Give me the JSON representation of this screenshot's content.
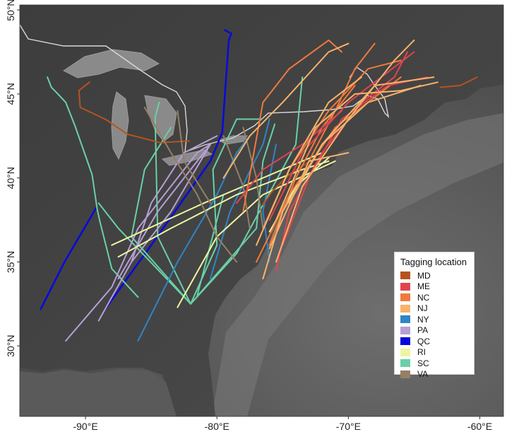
{
  "map": {
    "axes": {
      "x_ticks": [
        {
          "lon": -90,
          "label": "-90°E"
        },
        {
          "lon": -80,
          "label": "-80°E"
        },
        {
          "lon": -70,
          "label": "-70°E"
        },
        {
          "lon": -60,
          "label": "-60°E"
        }
      ],
      "y_ticks": [
        {
          "lat": 50,
          "label": "50°N"
        },
        {
          "lat": 45,
          "label": "45°N"
        },
        {
          "lat": 40,
          "label": "40°N"
        },
        {
          "lat": 35,
          "label": "35°N"
        },
        {
          "lat": 30,
          "label": "30°N"
        }
      ],
      "xlim": [
        -95.0,
        -58.2
      ],
      "ylim": [
        25.8,
        50.3
      ]
    },
    "legend": {
      "title": "Tagging location",
      "placement": "bottom-right",
      "items": [
        {
          "code": "MD",
          "label": "MD",
          "color": "#b5541e"
        },
        {
          "code": "ME",
          "label": "ME",
          "color": "#e0454e"
        },
        {
          "code": "NC",
          "label": "NC",
          "color": "#f07a3c"
        },
        {
          "code": "NJ",
          "label": "NJ",
          "color": "#f7b36b"
        },
        {
          "code": "NY",
          "label": "NY",
          "color": "#2f86c4"
        },
        {
          "code": "PA",
          "label": "PA",
          "color": "#b79fd6"
        },
        {
          "code": "QC",
          "label": "QC",
          "color": "#0a0ad8"
        },
        {
          "code": "RI",
          "label": "RI",
          "color": "#eef5a0"
        },
        {
          "code": "SC",
          "label": "SC",
          "color": "#69d1a6"
        },
        {
          "code": "VA",
          "label": "VA",
          "color": "#958064"
        }
      ]
    },
    "tracks": [
      {
        "group": "QC",
        "points": [
          [
            -93.4,
            32.2
          ],
          [
            -91.6,
            35.0
          ],
          [
            -89.2,
            38.2
          ]
        ]
      },
      {
        "group": "QC",
        "points": [
          [
            -88.5,
            32.2
          ],
          [
            -85.0,
            36.0
          ],
          [
            -80.5,
            41.0
          ],
          [
            -79.6,
            42.7
          ],
          [
            -79.1,
            48.2
          ],
          [
            -78.9,
            48.6
          ],
          [
            -79.4,
            48.8
          ]
        ]
      },
      {
        "group": "SC",
        "points": [
          [
            -92.9,
            46.0
          ],
          [
            -92.6,
            45.4
          ],
          [
            -92.1,
            45.0
          ],
          [
            -91.5,
            44.5
          ],
          [
            -90.8,
            43.1
          ],
          [
            -89.5,
            40.2
          ],
          [
            -89.1,
            38.1
          ],
          [
            -88.9,
            37.4
          ],
          [
            -88.0,
            34.6
          ],
          [
            -86.0,
            32.9
          ]
        ]
      },
      {
        "group": "SC",
        "points": [
          [
            -82.0,
            32.5
          ],
          [
            -87.5,
            37.0
          ],
          [
            -89.0,
            38.5
          ]
        ]
      },
      {
        "group": "SC",
        "points": [
          [
            -82.0,
            32.5
          ],
          [
            -84.5,
            36.5
          ],
          [
            -84.7,
            43.6
          ],
          [
            -84.4,
            44.5
          ]
        ]
      },
      {
        "group": "SC",
        "points": [
          [
            -82.0,
            32.5
          ],
          [
            -80.0,
            36.0
          ],
          [
            -80.3,
            40.5
          ],
          [
            -78.5,
            43.5
          ],
          [
            -76.6,
            43.5
          ]
        ]
      },
      {
        "group": "SC",
        "points": [
          [
            -82.0,
            32.5
          ],
          [
            -77.0,
            37.0
          ],
          [
            -76.5,
            41.0
          ],
          [
            -75.6,
            43.2
          ]
        ]
      },
      {
        "group": "SC",
        "points": [
          [
            -82.0,
            32.5
          ],
          [
            -78.5,
            35.5
          ],
          [
            -74.0,
            42.0
          ],
          [
            -73.5,
            46.0
          ]
        ]
      },
      {
        "group": "SC",
        "points": [
          [
            -82.0,
            32.5
          ],
          [
            -86.5,
            36.5
          ],
          [
            -85.5,
            40.5
          ],
          [
            -83.5,
            43.0
          ]
        ]
      },
      {
        "group": "SC",
        "points": [
          [
            -81.5,
            33.0
          ],
          [
            -80.5,
            36.0
          ],
          [
            -79.5,
            39.0
          ]
        ]
      },
      {
        "group": "PA",
        "points": [
          [
            -91.5,
            30.3
          ],
          [
            -88.0,
            33.5
          ],
          [
            -86.0,
            37.0
          ],
          [
            -81.5,
            41.5
          ],
          [
            -80.5,
            42.0
          ]
        ]
      },
      {
        "group": "PA",
        "points": [
          [
            -89.0,
            31.5
          ],
          [
            -86.5,
            35.0
          ],
          [
            -83.5,
            38.0
          ],
          [
            -80.5,
            42.0
          ]
        ]
      },
      {
        "group": "PA",
        "points": [
          [
            -86.5,
            35.0
          ],
          [
            -85.0,
            38.5
          ],
          [
            -82.5,
            41.5
          ],
          [
            -80.0,
            42.5
          ]
        ]
      },
      {
        "group": "PA",
        "points": [
          [
            -87.5,
            34.0
          ],
          [
            -84.5,
            38.0
          ],
          [
            -80.5,
            42.0
          ]
        ]
      },
      {
        "group": "NY",
        "points": [
          [
            -86.0,
            30.3
          ],
          [
            -83.0,
            35.0
          ],
          [
            -80.0,
            39.0
          ],
          [
            -78.5,
            41.5
          ],
          [
            -77.5,
            42.5
          ]
        ]
      },
      {
        "group": "NY",
        "points": [
          [
            -80.5,
            34.0
          ],
          [
            -79.0,
            38.0
          ],
          [
            -76.5,
            42.0
          ],
          [
            -76.0,
            43.5
          ]
        ]
      },
      {
        "group": "NY",
        "points": [
          [
            -76.0,
            35.0
          ],
          [
            -76.5,
            38.0
          ],
          [
            -75.5,
            42.0
          ]
        ]
      },
      {
        "group": "RI",
        "points": [
          [
            -88.0,
            36.0
          ],
          [
            -81.0,
            38.5
          ],
          [
            -72.0,
            41.5
          ]
        ]
      },
      {
        "group": "RI",
        "points": [
          [
            -87.5,
            35.3
          ],
          [
            -83.5,
            37.0
          ],
          [
            -78.5,
            39.0
          ],
          [
            -73.5,
            40.5
          ],
          [
            -71.5,
            41.0
          ]
        ]
      },
      {
        "group": "RI",
        "points": [
          [
            -83.0,
            32.3
          ],
          [
            -80.0,
            36.5
          ],
          [
            -76.5,
            39.0
          ],
          [
            -71.0,
            41.0
          ]
        ]
      },
      {
        "group": "RI",
        "points": [
          [
            -76.0,
            36.8
          ],
          [
            -74.0,
            39.5
          ],
          [
            -71.5,
            41.2
          ]
        ]
      },
      {
        "group": "MD",
        "points": [
          [
            -90.5,
            45.2
          ],
          [
            -90.4,
            44.2
          ],
          [
            -88.5,
            43.5
          ],
          [
            -86.8,
            42.6
          ],
          [
            -84.3,
            42.1
          ],
          [
            -82.1,
            42.2
          ]
        ]
      },
      {
        "group": "MD",
        "points": [
          [
            -89.7,
            45.7
          ],
          [
            -90.5,
            45.2
          ]
        ]
      },
      {
        "group": "MD",
        "points": [
          [
            -63.0,
            45.4
          ],
          [
            -61.5,
            45.5
          ],
          [
            -60.2,
            46.0
          ]
        ]
      },
      {
        "group": "MD",
        "points": [
          [
            -76.5,
            38.4
          ],
          [
            -75.8,
            39.2
          ],
          [
            -74.5,
            40.2
          ],
          [
            -72.5,
            41.2
          ]
        ]
      },
      {
        "group": "VA",
        "points": [
          [
            -85.5,
            44.2
          ],
          [
            -83.5,
            41.5
          ],
          [
            -81.5,
            39.0
          ],
          [
            -80.0,
            36.5
          ],
          [
            -78.5,
            35.0
          ]
        ]
      },
      {
        "group": "VA",
        "points": [
          [
            -83.0,
            44.0
          ],
          [
            -82.5,
            41.0
          ],
          [
            -80.5,
            38.5
          ]
        ]
      },
      {
        "group": "VA",
        "points": [
          [
            -78.0,
            43.0
          ],
          [
            -77.0,
            40.0
          ],
          [
            -76.5,
            37.0
          ]
        ]
      },
      {
        "group": "VA",
        "points": [
          [
            -79.5,
            42.5
          ],
          [
            -78.0,
            39.5
          ],
          [
            -77.5,
            37.0
          ]
        ]
      },
      {
        "group": "NC",
        "points": [
          [
            -73.0,
            41.0
          ],
          [
            -71.0,
            44.0
          ],
          [
            -69.5,
            46.5
          ],
          [
            -68.0,
            48.0
          ]
        ]
      },
      {
        "group": "NC",
        "points": [
          [
            -76.5,
            37.0
          ],
          [
            -74.5,
            40.5
          ],
          [
            -71.5,
            44.0
          ],
          [
            -68.5,
            46.5
          ],
          [
            -66.0,
            47.0
          ]
        ]
      },
      {
        "group": "NC",
        "points": [
          [
            -77.0,
            35.0
          ],
          [
            -74.5,
            39.0
          ],
          [
            -71.0,
            43.0
          ],
          [
            -66.0,
            46.0
          ]
        ]
      },
      {
        "group": "NC",
        "points": [
          [
            -78.0,
            38.0
          ],
          [
            -76.5,
            44.5
          ],
          [
            -74.5,
            46.5
          ],
          [
            -71.5,
            48.2
          ],
          [
            -70.5,
            47.5
          ]
        ]
      },
      {
        "group": "NC",
        "points": [
          [
            -76.0,
            36.0
          ],
          [
            -74.0,
            40.0
          ],
          [
            -72.0,
            43.0
          ],
          [
            -69.5,
            45.5
          ]
        ]
      },
      {
        "group": "ME",
        "points": [
          [
            -75.5,
            34.5
          ],
          [
            -74.5,
            38.0
          ],
          [
            -72.0,
            41.5
          ],
          [
            -69.0,
            44.5
          ],
          [
            -66.5,
            46.0
          ],
          [
            -65.5,
            47.5
          ]
        ]
      },
      {
        "group": "ME",
        "points": [
          [
            -75.0,
            36.0
          ],
          [
            -73.0,
            40.0
          ],
          [
            -70.5,
            43.5
          ],
          [
            -67.0,
            45.5
          ],
          [
            -64.0,
            46.0
          ]
        ]
      },
      {
        "group": "ME",
        "points": [
          [
            -76.0,
            37.5
          ],
          [
            -73.5,
            41.5
          ],
          [
            -70.0,
            44.5
          ],
          [
            -65.0,
            47.5
          ]
        ]
      },
      {
        "group": "ME",
        "points": [
          [
            -78.5,
            38.5
          ],
          [
            -76.5,
            40.5
          ],
          [
            -73.5,
            42.0
          ],
          [
            -70.5,
            44.0
          ]
        ]
      },
      {
        "group": "NJ",
        "points": [
          [
            -76.5,
            34.0
          ],
          [
            -75.0,
            38.0
          ],
          [
            -72.0,
            42.0
          ],
          [
            -68.0,
            45.5
          ],
          [
            -63.5,
            46.0
          ]
        ]
      },
      {
        "group": "NJ",
        "points": [
          [
            -75.5,
            35.0
          ],
          [
            -73.5,
            39.5
          ],
          [
            -70.0,
            43.5
          ],
          [
            -66.5,
            47.0
          ],
          [
            -65.0,
            48.2
          ]
        ]
      },
      {
        "group": "NJ",
        "points": [
          [
            -77.0,
            36.0
          ],
          [
            -74.5,
            40.5
          ],
          [
            -71.5,
            44.5
          ],
          [
            -69.0,
            46.0
          ]
        ]
      },
      {
        "group": "NJ",
        "points": [
          [
            -74.5,
            38.5
          ],
          [
            -72.0,
            42.0
          ],
          [
            -68.5,
            44.5
          ],
          [
            -64.5,
            45.5
          ]
        ]
      },
      {
        "group": "NJ",
        "points": [
          [
            -79.5,
            40.0
          ],
          [
            -77.5,
            42.5
          ],
          [
            -75.0,
            44.5
          ],
          [
            -71.5,
            47.5
          ],
          [
            -70.0,
            48.0
          ]
        ]
      },
      {
        "group": "NJ",
        "points": [
          [
            -76.0,
            35.8
          ],
          [
            -73.0,
            41.0
          ],
          [
            -70.0,
            41.5
          ]
        ]
      },
      {
        "group": "NJ",
        "points": [
          [
            -75.5,
            37.5
          ],
          [
            -72.5,
            43.0
          ],
          [
            -69.5,
            45.0
          ],
          [
            -66.0,
            45.2
          ],
          [
            -63.2,
            45.7
          ]
        ]
      }
    ]
  }
}
